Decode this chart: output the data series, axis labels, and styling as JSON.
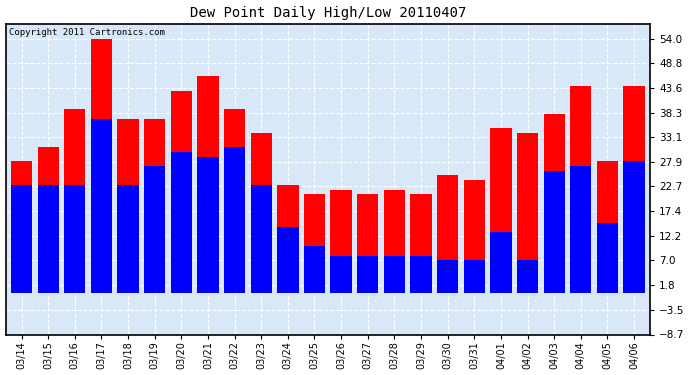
{
  "title": "Dew Point Daily High/Low 20110407",
  "copyright": "Copyright 2011 Cartronics.com",
  "dates": [
    "03/14",
    "03/15",
    "03/16",
    "03/17",
    "03/18",
    "03/19",
    "03/20",
    "03/21",
    "03/22",
    "03/23",
    "03/24",
    "03/25",
    "03/26",
    "03/27",
    "03/28",
    "03/29",
    "03/30",
    "03/31",
    "04/01",
    "04/02",
    "04/03",
    "04/04",
    "04/05",
    "04/06"
  ],
  "highs": [
    28,
    31,
    39,
    54,
    37,
    37,
    43,
    46,
    39,
    34,
    23,
    21,
    22,
    21,
    22,
    21,
    25,
    24,
    35,
    34,
    38,
    44,
    28,
    44
  ],
  "lows": [
    23,
    23,
    23,
    37,
    23,
    27,
    30,
    29,
    31,
    23,
    14,
    10,
    8,
    8,
    8,
    8,
    7,
    7,
    13,
    7,
    26,
    27,
    15,
    28
  ],
  "high_color": "#FF0000",
  "low_color": "#0000FF",
  "bg_color": "#FFFFFF",
  "plot_bg_color": "#D8E8F8",
  "grid_color": "#FFFFFF",
  "ylim_min": -8.7,
  "ylim_max": 57.2,
  "yticks": [
    -8.7,
    -3.5,
    1.8,
    7.0,
    12.2,
    17.4,
    22.7,
    27.9,
    33.1,
    38.3,
    43.6,
    48.8,
    54.0
  ],
  "bar_width": 0.8,
  "figwidth": 6.9,
  "figheight": 3.75,
  "dpi": 100
}
